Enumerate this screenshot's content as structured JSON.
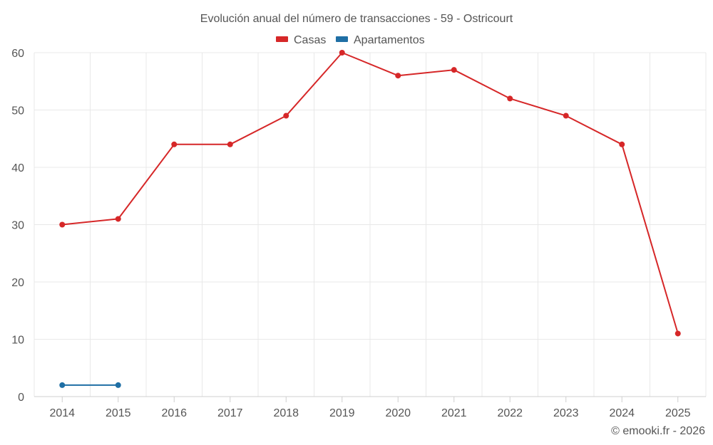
{
  "chart_data": {
    "type": "line",
    "title": "Evolución anual del número de transacciones - 59 - Ostricourt",
    "categories": [
      "2014",
      "2015",
      "2016",
      "2017",
      "2018",
      "2019",
      "2020",
      "2021",
      "2022",
      "2023",
      "2024",
      "2025"
    ],
    "series": [
      {
        "name": "Casas",
        "color": "#d62728",
        "values": [
          30,
          31,
          44,
          44,
          49,
          60,
          56,
          57,
          52,
          49,
          44,
          11
        ]
      },
      {
        "name": "Apartamentos",
        "color": "#1f6fa5",
        "values": [
          2,
          2,
          null,
          null,
          null,
          null,
          null,
          null,
          null,
          null,
          null,
          null
        ]
      }
    ],
    "ylim": [
      0,
      60
    ],
    "yticks": [
      0,
      10,
      20,
      30,
      40,
      50,
      60
    ],
    "legend_position": "top-center",
    "xlabel": "",
    "ylabel": "",
    "grid": true
  },
  "credit": "© emooki.fr - 2026"
}
